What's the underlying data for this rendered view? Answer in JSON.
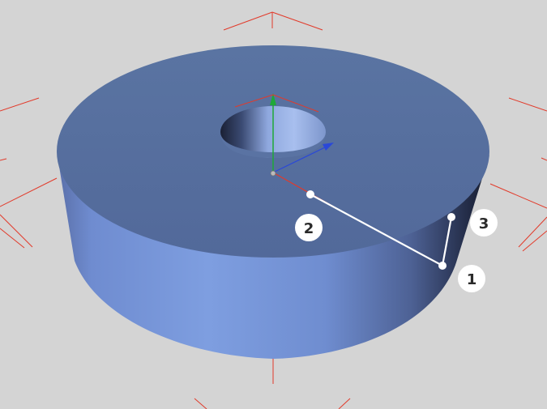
{
  "colors": {
    "background": "#d4d4d4",
    "grid": "#e23a2a",
    "solid_top": "#56709e",
    "solid_side_light": "#7f9fe0",
    "solid_side_dark": "#1c2236",
    "axis_x": "#e23a2a",
    "axis_y": "#1fa838",
    "axis_z": "#2a48d8",
    "measure_line": "#ffffff"
  },
  "icons": {
    "gizmo": "axis-gizmo-icon",
    "grid": "perspective-grid"
  },
  "markers": [
    {
      "id": "marker-1",
      "label": "1"
    },
    {
      "id": "marker-2",
      "label": "2"
    },
    {
      "id": "marker-3",
      "label": "3"
    }
  ]
}
